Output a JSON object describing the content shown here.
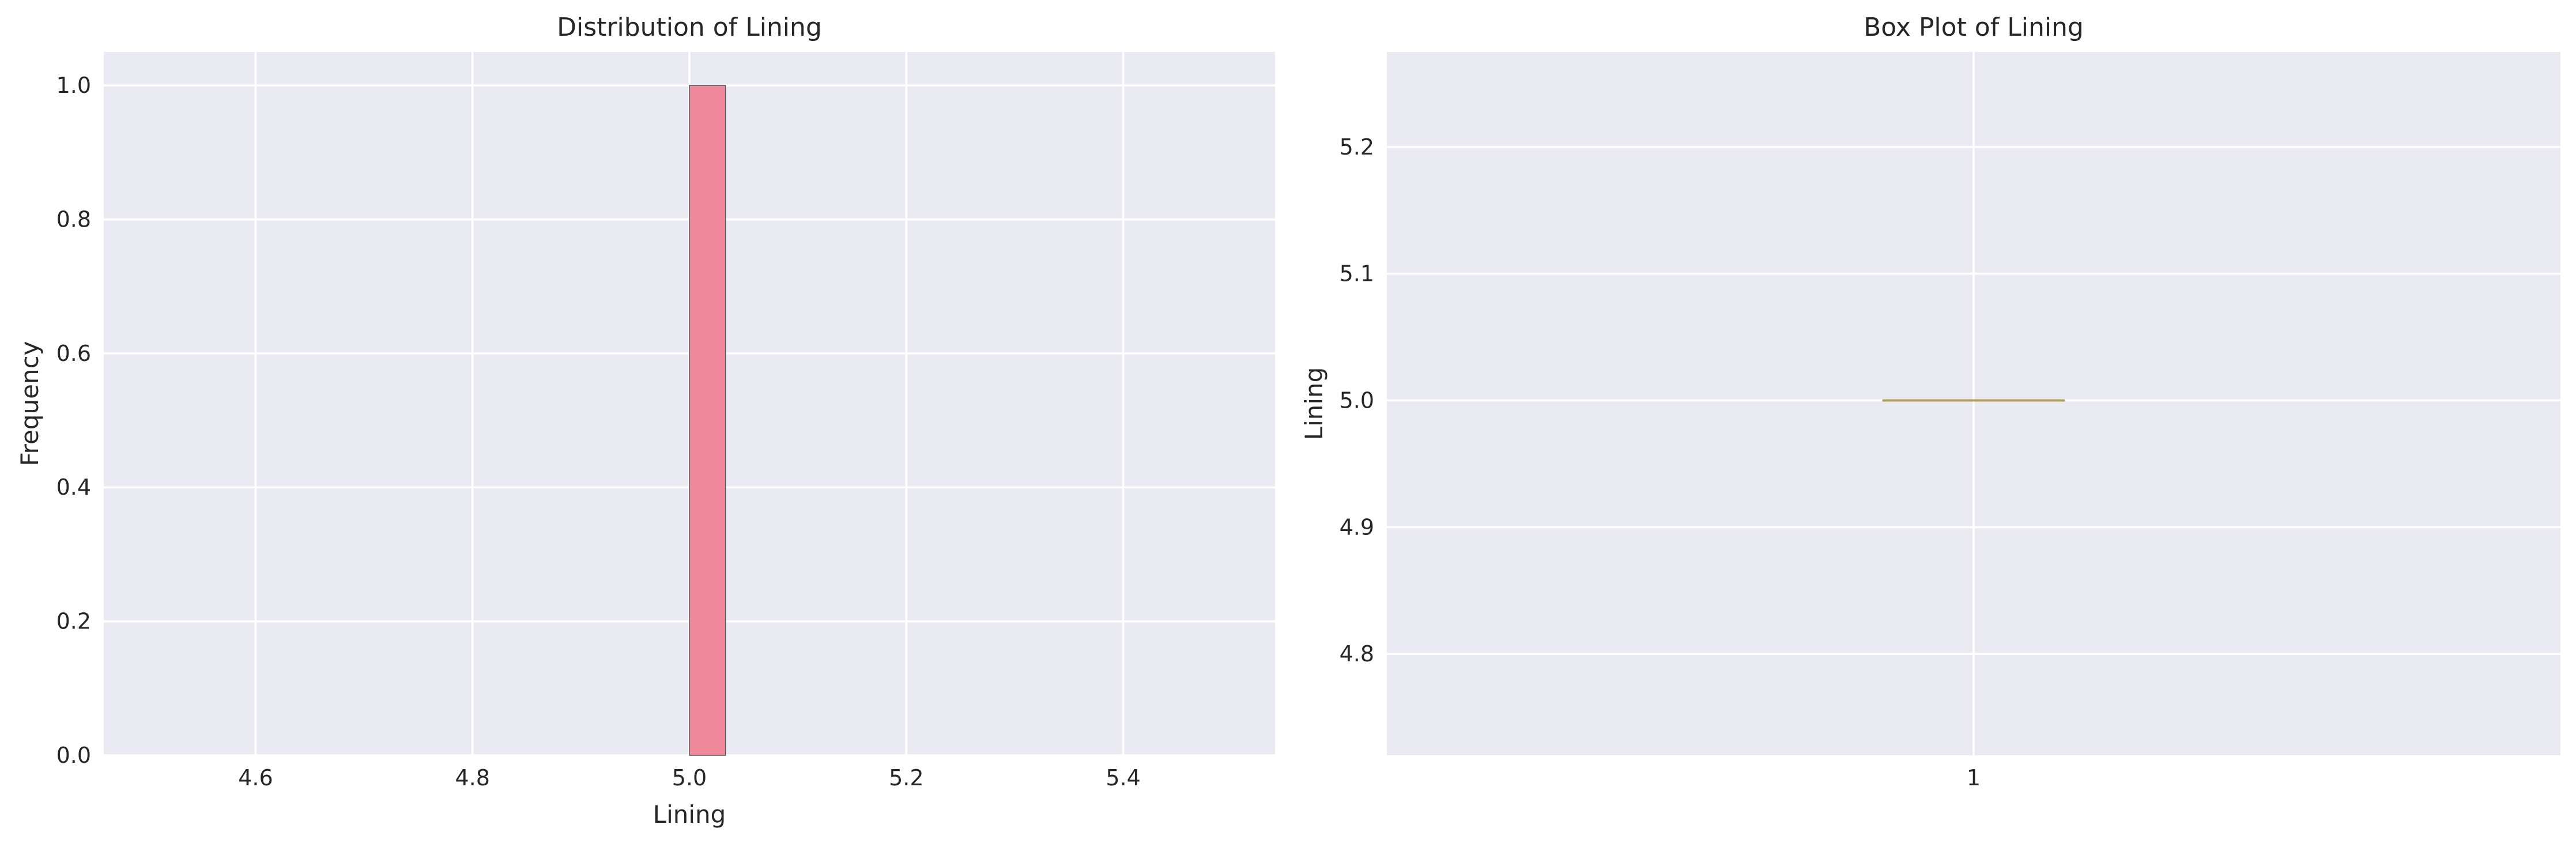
{
  "colors": {
    "panel_bg": "#eaeaf2",
    "grid": "#ffffff",
    "bar_fill": "#f0899c",
    "bar_stroke": "#555555",
    "median_line": "#b5a05a",
    "text": "#262626"
  },
  "chart_data": [
    {
      "type": "bar",
      "title": "Distribution of Lining",
      "xlabel": "Lining",
      "ylabel": "Frequency",
      "xlim": [
        4.46,
        5.54
      ],
      "ylim": [
        0,
        1.05
      ],
      "xticks": [
        4.6,
        4.8,
        5.0,
        5.2,
        5.4
      ],
      "xtick_labels": [
        "4.6",
        "4.8",
        "5.0",
        "5.2",
        "5.4"
      ],
      "yticks": [
        0.0,
        0.2,
        0.4,
        0.6,
        0.8,
        1.0
      ],
      "ytick_labels": [
        "0.0",
        "0.2",
        "0.4",
        "0.6",
        "0.8",
        "1.0"
      ],
      "grid": true,
      "bins": [
        {
          "x0": 5.0,
          "x1": 5.0333,
          "value": 1
        }
      ]
    },
    {
      "type": "box",
      "title": "Box Plot of Lining",
      "xlabel": "",
      "ylabel": "Lining",
      "ylim": [
        4.72,
        5.275
      ],
      "yticks": [
        4.8,
        4.9,
        5.0,
        5.1,
        5.2
      ],
      "ytick_labels": [
        "4.8",
        "4.9",
        "5.0",
        "5.1",
        "5.2"
      ],
      "xticks": [
        1
      ],
      "xtick_labels": [
        "1"
      ],
      "grid": true,
      "boxes": [
        {
          "position": 1,
          "min": 5.0,
          "q1": 5.0,
          "median": 5.0,
          "q3": 5.0,
          "max": 5.0
        }
      ]
    }
  ]
}
